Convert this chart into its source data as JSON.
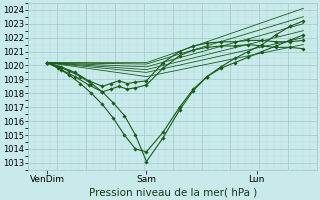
{
  "bg_color": "#c8eaea",
  "grid_major_color": "#a0c8c8",
  "grid_minor_color": "#b8dcdc",
  "line_color": "#1a5c1a",
  "ylim": [
    1012.5,
    1024.5
  ],
  "yticks": [
    1013,
    1014,
    1015,
    1016,
    1017,
    1018,
    1019,
    1020,
    1021,
    1022,
    1023,
    1024
  ],
  "xtick_labels": [
    "VenDim",
    "Sam",
    "Lun"
  ],
  "xtick_positions": [
    0.07,
    0.43,
    0.83
  ],
  "xlabel": "Pression niveau de la mer( hPa )",
  "xlabel_fontsize": 7.5,
  "ylabel_fontsize": 6.0,
  "lines": [
    {
      "x": [
        0.07,
        0.11,
        0.15,
        0.19,
        0.23,
        0.27,
        0.31,
        0.35,
        0.39,
        0.43,
        0.49,
        0.55,
        0.6,
        0.65,
        0.7,
        0.75,
        0.8,
        0.85,
        0.9,
        0.95,
        1.0
      ],
      "y": [
        1020.2,
        1019.9,
        1019.6,
        1019.2,
        1018.7,
        1018.1,
        1017.3,
        1016.4,
        1015.0,
        1013.1,
        1014.8,
        1016.8,
        1018.2,
        1019.2,
        1019.8,
        1020.2,
        1020.6,
        1021.0,
        1021.4,
        1021.8,
        1022.2
      ],
      "marker": true
    },
    {
      "x": [
        0.07,
        0.11,
        0.15,
        0.19,
        0.23,
        0.27,
        0.31,
        0.35,
        0.39,
        0.43,
        0.49,
        0.55,
        0.6,
        0.65,
        0.7,
        0.75,
        0.8,
        0.85,
        0.9,
        0.95,
        1.0
      ],
      "y": [
        1020.2,
        1019.8,
        1019.3,
        1018.7,
        1018.0,
        1017.2,
        1016.2,
        1015.0,
        1014.0,
        1013.8,
        1015.2,
        1017.0,
        1018.3,
        1019.2,
        1019.9,
        1020.5,
        1021.0,
        1021.5,
        1022.2,
        1022.8,
        1023.2
      ],
      "marker": true
    },
    {
      "x": [
        0.07,
        0.43,
        1.0
      ],
      "y": [
        1020.2,
        1019.2,
        1021.5
      ],
      "marker": false
    },
    {
      "x": [
        0.07,
        0.43,
        1.0
      ],
      "y": [
        1020.2,
        1019.5,
        1022.0
      ],
      "marker": false
    },
    {
      "x": [
        0.07,
        0.43,
        1.0
      ],
      "y": [
        1020.2,
        1019.7,
        1022.5
      ],
      "marker": false
    },
    {
      "x": [
        0.07,
        0.43,
        1.0
      ],
      "y": [
        1020.2,
        1019.9,
        1023.0
      ],
      "marker": false
    },
    {
      "x": [
        0.07,
        0.43,
        1.0
      ],
      "y": [
        1020.2,
        1020.1,
        1023.5
      ],
      "marker": false
    },
    {
      "x": [
        0.07,
        0.43,
        1.0
      ],
      "y": [
        1020.2,
        1020.2,
        1024.1
      ],
      "marker": false
    },
    {
      "x": [
        0.07,
        0.12,
        0.17,
        0.22,
        0.27,
        0.3,
        0.33,
        0.36,
        0.39,
        0.43,
        0.49,
        0.55,
        0.6,
        0.65,
        0.7,
        0.75,
        0.8,
        0.85,
        0.9,
        0.95,
        1.0
      ],
      "y": [
        1020.2,
        1019.9,
        1019.5,
        1018.9,
        1018.5,
        1018.7,
        1018.9,
        1018.7,
        1018.8,
        1018.9,
        1020.2,
        1021.0,
        1021.4,
        1021.6,
        1021.7,
        1021.7,
        1021.8,
        1021.8,
        1021.7,
        1021.7,
        1021.8
      ],
      "marker": true
    },
    {
      "x": [
        0.07,
        0.12,
        0.17,
        0.22,
        0.27,
        0.3,
        0.33,
        0.36,
        0.39,
        0.43,
        0.49,
        0.55,
        0.6,
        0.65,
        0.7,
        0.75,
        0.8,
        0.85,
        0.9,
        0.95,
        1.0
      ],
      "y": [
        1020.2,
        1019.7,
        1019.2,
        1018.6,
        1018.1,
        1018.3,
        1018.5,
        1018.3,
        1018.4,
        1018.6,
        1019.8,
        1020.7,
        1021.1,
        1021.3,
        1021.4,
        1021.4,
        1021.5,
        1021.4,
        1021.3,
        1021.3,
        1021.2
      ],
      "marker": true
    }
  ]
}
